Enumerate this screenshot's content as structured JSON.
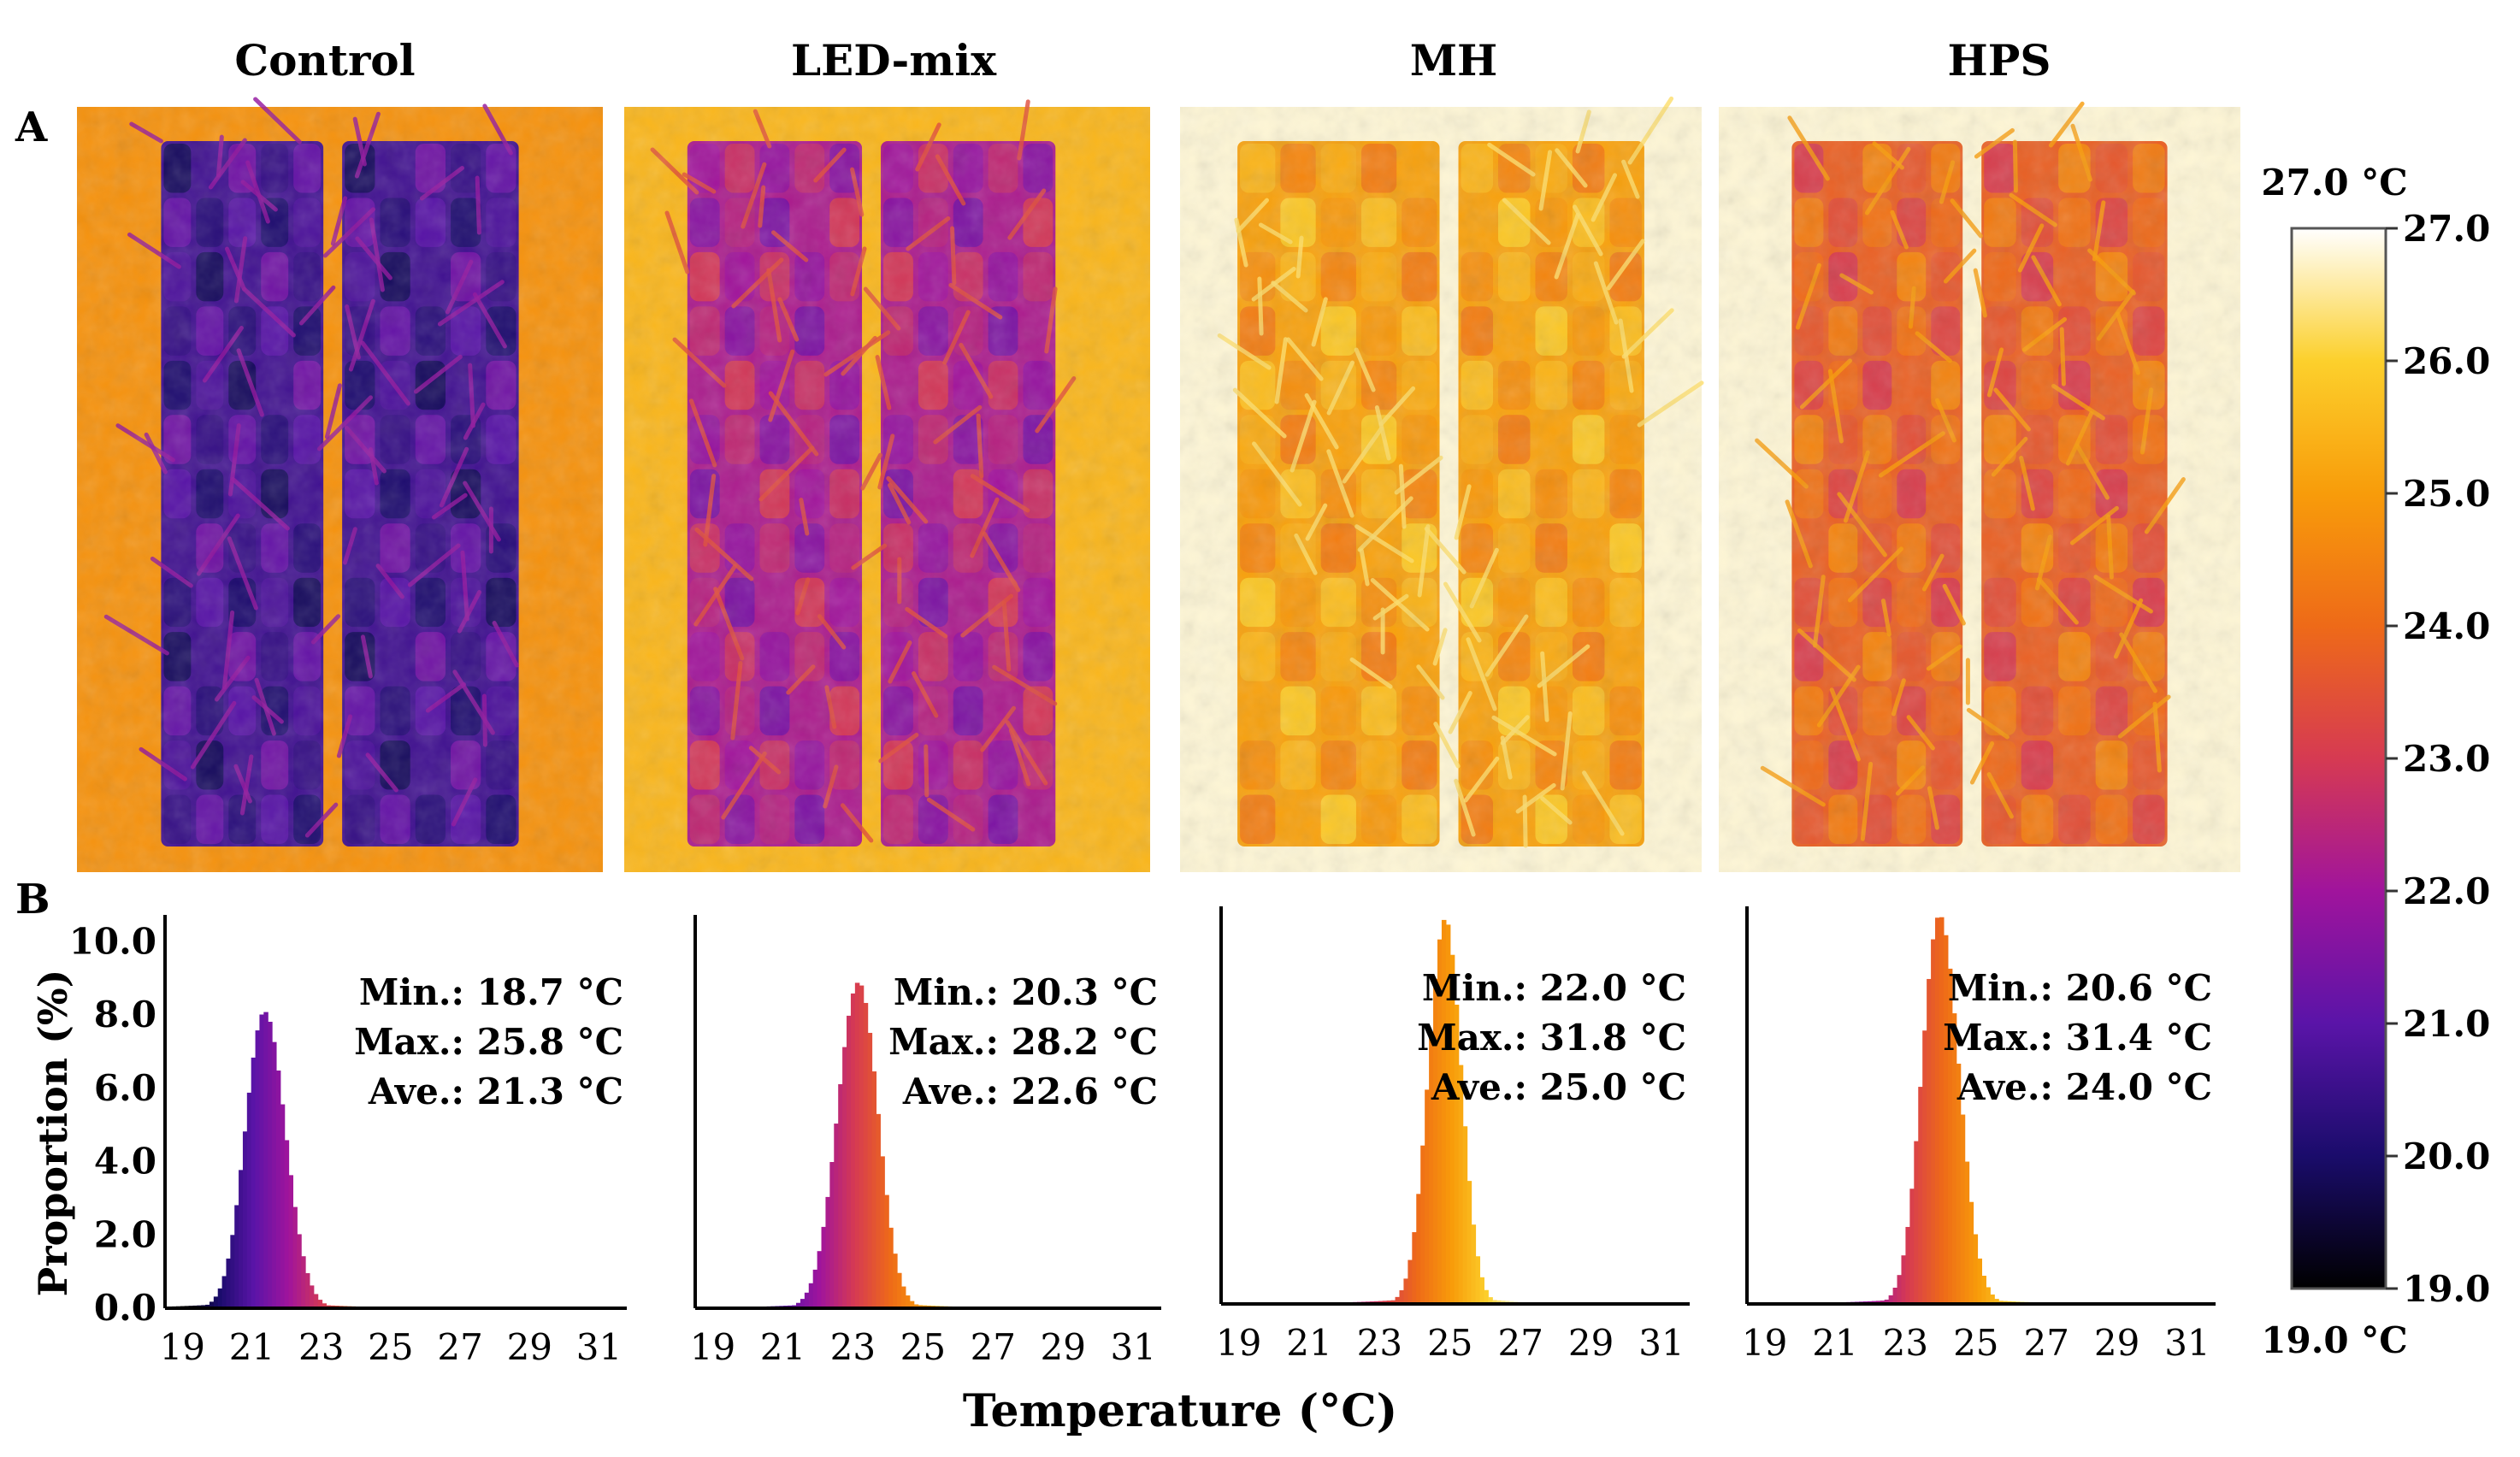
{
  "panel_labels": {
    "a": "A",
    "b": "B"
  },
  "treatments": [
    "Control",
    "LED-mix",
    "MH",
    "HPS"
  ],
  "colorbar": {
    "top_label": "27.0 °C",
    "bottom_label": "19.0 °C",
    "ticks": [
      "27.0",
      "26.0",
      "25.0",
      "24.0",
      "23.0",
      "22.0",
      "21.0",
      "20.0",
      "19.0"
    ],
    "min": 19.0,
    "max": 27.0,
    "stops": [
      "#000000",
      "#1a0c6b",
      "#5a14a8",
      "#a0149c",
      "#d63a52",
      "#ee6a18",
      "#f89c0a",
      "#fcd02c",
      "#ffffff"
    ]
  },
  "thermal_images": [
    {
      "name": "Control",
      "canopy_temp": 20.6,
      "bg_temp": 24.8
    },
    {
      "name": "LED-mix",
      "canopy_temp": 22.2,
      "bg_temp": 25.5
    },
    {
      "name": "MH",
      "canopy_temp": 25.1,
      "bg_temp": 26.8
    },
    {
      "name": "HPS",
      "canopy_temp": 23.8,
      "bg_temp": 26.8
    }
  ],
  "chart_data": {
    "type": "bar",
    "title": "",
    "xlabel": "Temperature (°C)",
    "ylabel": "Proportion (%)",
    "xlim": [
      18.5,
      31.8
    ],
    "ylim": [
      0,
      10.5
    ],
    "xticks": [
      "19",
      "21",
      "23",
      "25",
      "27",
      "29",
      "31"
    ],
    "yticks": [
      "0.0",
      "2.0",
      "4.0",
      "6.0",
      "8.0",
      "10.0"
    ],
    "series": [
      {
        "name": "Control",
        "stats": [
          "Min.: 18.7 °C",
          "Max.: 25.8 °C",
          "Ave.: 21.3 °C"
        ],
        "peak": 21.3,
        "peak_value": 8.1,
        "sigma_left": 0.55,
        "sigma_right": 0.6,
        "min": 18.7,
        "max": 25.8
      },
      {
        "name": "LED-mix",
        "stats": [
          "Min.: 20.3 °C",
          "Max.: 28.2 °C",
          "Ave.: 22.6 °C"
        ],
        "peak": 23.1,
        "peak_value": 8.9,
        "sigma_left": 0.6,
        "sigma_right": 0.55,
        "min": 20.3,
        "max": 28.2
      },
      {
        "name": "MH",
        "stats": [
          "Min.: 22.0 °C",
          "Max.: 31.8 °C",
          "Ave.: 25.0 °C"
        ],
        "peak": 24.8,
        "peak_value": 10.4,
        "sigma_left": 0.48,
        "sigma_right": 0.45,
        "min": 22.0,
        "max": 31.8
      },
      {
        "name": "HPS",
        "stats": [
          "Min.: 20.6 °C",
          "Max.: 31.4 °C",
          "Ave.: 24.0 °C"
        ],
        "peak": 23.9,
        "peak_value": 10.5,
        "sigma_left": 0.5,
        "sigma_right": 0.55,
        "min": 20.6,
        "max": 31.4
      }
    ]
  }
}
